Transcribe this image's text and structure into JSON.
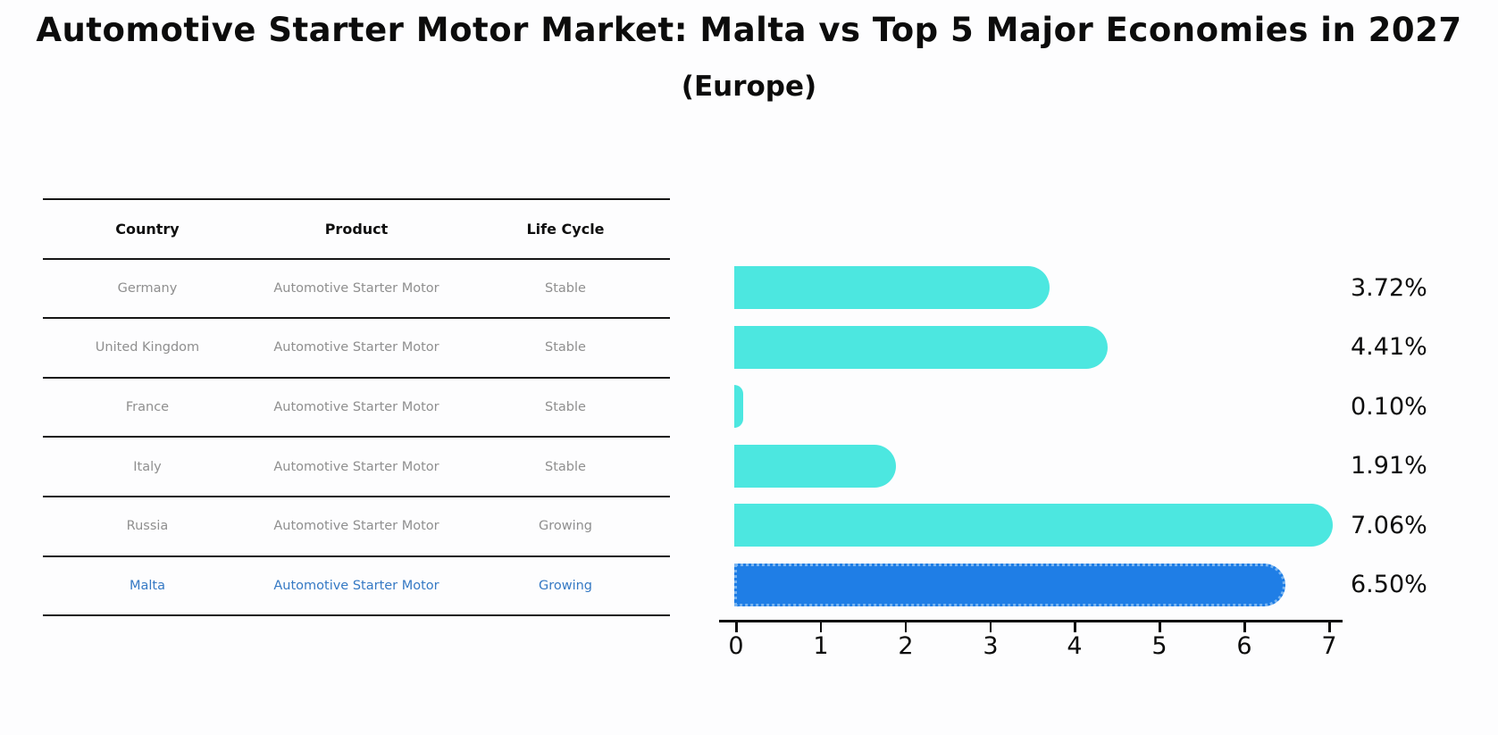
{
  "header": {
    "title": "Automotive Starter Motor Market: Malta vs Top 5 Major Economies in 2027",
    "subtitle": "(Europe)"
  },
  "colors": {
    "bar": "#4ce7e0",
    "highlight_bar": "#1f7ee6",
    "highlight_bar_border": "#7ab5f0",
    "row_text": "#8f8f8f",
    "highlight_text": "#3579c4",
    "axis": "#0c0c0c"
  },
  "table": {
    "columns": [
      "Country",
      "Product",
      "Life Cycle"
    ],
    "rows": [
      {
        "country": "Germany",
        "product": "Automotive Starter Motor",
        "life_cycle": "Stable"
      },
      {
        "country": "United Kingdom",
        "product": "Automotive Starter Motor",
        "life_cycle": "Stable"
      },
      {
        "country": "France",
        "product": "Automotive Starter Motor",
        "life_cycle": "Stable"
      },
      {
        "country": "Italy",
        "product": "Automotive Starter Motor",
        "life_cycle": "Stable"
      },
      {
        "country": "Russia",
        "product": "Automotive Starter Motor",
        "life_cycle": "Growing"
      },
      {
        "country": "Malta",
        "product": "Automotive Starter Motor",
        "life_cycle": "Growing"
      }
    ]
  },
  "chart_data": {
    "type": "bar",
    "orientation": "horizontal",
    "title": "Automotive Starter Motor Market: Malta vs Top 5 Major Economies in 2027 (Europe)",
    "categories": [
      "Germany",
      "United Kingdom",
      "France",
      "Italy",
      "Russia",
      "Malta"
    ],
    "values": [
      3.72,
      4.41,
      0.1,
      1.91,
      7.06,
      6.5
    ],
    "value_labels": [
      "3.72%",
      "4.41%",
      "0.10%",
      "1.91%",
      "7.06%",
      "6.50%"
    ],
    "unit": "%",
    "highlight_index": 5,
    "xlim": [
      0,
      7.35
    ],
    "xticks": [
      "0",
      "1",
      "2",
      "3",
      "4",
      "5",
      "6",
      "7"
    ],
    "grid": false,
    "legend": false
  }
}
